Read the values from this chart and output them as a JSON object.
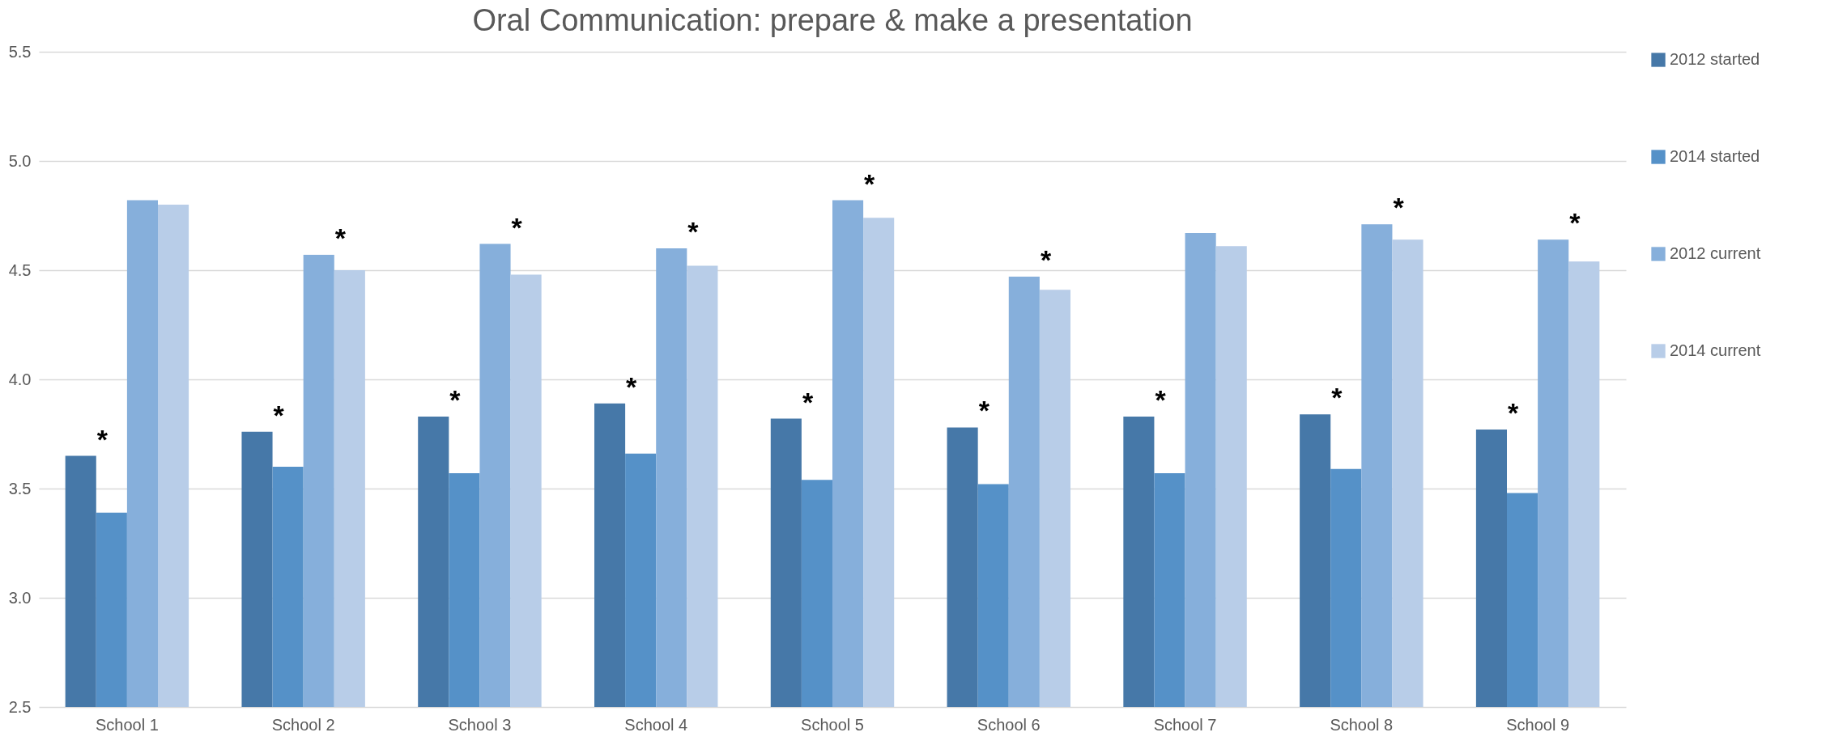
{
  "chart_data": {
    "type": "bar",
    "title": "Oral Communication: prepare & make a presentation",
    "categories": [
      "School 1",
      "School 2",
      "School 3",
      "School 4",
      "School 5",
      "School 6",
      "School 7",
      "School 8",
      "School 9"
    ],
    "series": [
      {
        "name": "2012 started",
        "color": "#4678a8",
        "values": [
          3.65,
          3.76,
          3.83,
          3.89,
          3.82,
          3.78,
          3.83,
          3.84,
          3.77
        ]
      },
      {
        "name": "2014 started",
        "color": "#5591c8",
        "values": [
          3.39,
          3.6,
          3.57,
          3.66,
          3.54,
          3.52,
          3.57,
          3.59,
          3.48
        ]
      },
      {
        "name": "2012 current",
        "color": "#86afdb",
        "values": [
          4.82,
          4.57,
          4.62,
          4.6,
          4.82,
          4.47,
          4.67,
          4.71,
          4.64
        ]
      },
      {
        "name": "2014 current",
        "color": "#b8cde8",
        "values": [
          4.8,
          4.5,
          4.48,
          4.52,
          4.74,
          4.41,
          4.61,
          4.64,
          4.54
        ]
      }
    ],
    "ylim": [
      2.5,
      5.5
    ],
    "yticks": [
      2.5,
      {
        "value": 3,
        "label": "3.0"
      },
      3.5,
      {
        "value": 4,
        "label": "4.0"
      },
      4.5,
      {
        "value": 5,
        "label": "5.0"
      },
      5.5
    ],
    "grid": "y",
    "legend": "right",
    "annotations": [
      {
        "text": "*",
        "x": "School 1",
        "y": 3.65
      },
      {
        "text": "*",
        "x": "School 2",
        "y": 3.76
      },
      {
        "text": "*",
        "x": "School 2",
        "y": 4.57
      },
      {
        "text": "*",
        "x": "School 3",
        "y": 3.83
      },
      {
        "text": "*",
        "x": "School 3",
        "y": 4.62
      },
      {
        "text": "*",
        "x": "School 4",
        "y": 3.89
      },
      {
        "text": "*",
        "x": "School 4",
        "y": 4.6
      },
      {
        "text": "*",
        "x": "School 5",
        "y": 3.82
      },
      {
        "text": "*",
        "x": "School 5",
        "y": 4.82
      },
      {
        "text": "*",
        "x": "School 6",
        "y": 3.78
      },
      {
        "text": "*",
        "x": "School 6",
        "y": 4.47
      },
      {
        "text": "*",
        "x": "School 7",
        "y": 3.83
      },
      {
        "text": "*",
        "x": "School 8",
        "y": 3.84
      },
      {
        "text": "*",
        "x": "School 8",
        "y": 4.71
      },
      {
        "text": "*",
        "x": "School 9",
        "y": 3.77
      },
      {
        "text": "*",
        "x": "School 9",
        "y": 4.64
      }
    ]
  }
}
